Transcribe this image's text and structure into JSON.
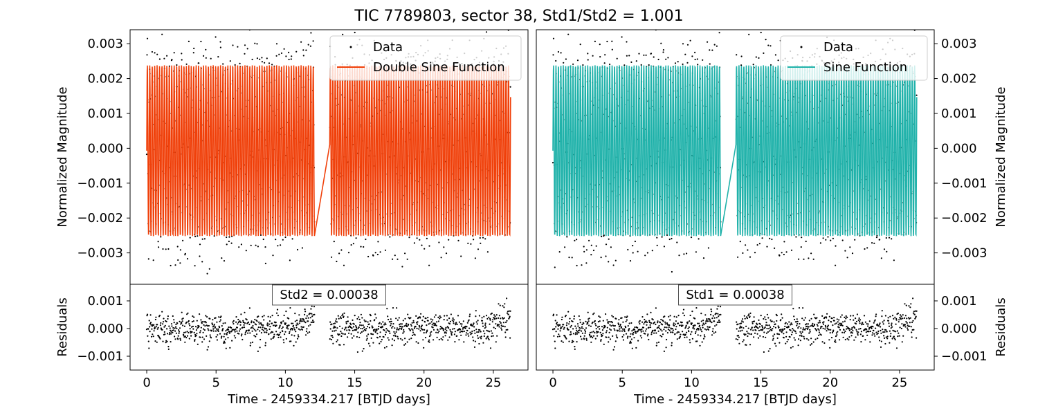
{
  "figure": {
    "title": "TIC 7789803, sector 38, Std1/Std2 = 1.001"
  },
  "chart_data": [
    {
      "type": "scatter",
      "panel": "top-left",
      "ylabel": "Normalized Magnitude",
      "xlim": [
        -1.2,
        27.5
      ],
      "ylim": [
        -0.0039,
        0.0034
      ],
      "yticks": [
        -0.003,
        -0.002,
        -0.001,
        0.0,
        0.001,
        0.002,
        0.003
      ],
      "ytick_labels": [
        "−0.003",
        "−0.002",
        "−0.001",
        "0.000",
        "0.001",
        "0.002",
        "0.003"
      ],
      "series": [
        {
          "name": "Data",
          "kind": "points",
          "color": "#000000"
        },
        {
          "name": "Double Sine Function",
          "kind": "line",
          "color": "#f0400a",
          "amplitude": 0.00245,
          "offset": -7e-05,
          "period_days": 0.176
        }
      ],
      "gap": [
        12.1,
        13.2
      ],
      "x_range": [
        0.0,
        26.25
      ],
      "legend": "upper right"
    },
    {
      "type": "scatter",
      "panel": "bottom-left",
      "ylabel": "Residuals",
      "xlabel": "Time - 2459334.217 [BTJD days]",
      "xlim": [
        -1.2,
        27.5
      ],
      "ylim": [
        -0.0015,
        0.0016
      ],
      "yticks": [
        -0.001,
        0.0,
        0.001
      ],
      "ytick_labels": [
        "−0.001",
        "0.000",
        "0.001"
      ],
      "xticks": [
        0,
        5,
        10,
        15,
        20,
        25
      ],
      "xtick_labels": [
        "0",
        "5",
        "10",
        "15",
        "20",
        "25"
      ],
      "annotation": "Std2 = 0.00038",
      "std": 0.00038
    },
    {
      "type": "scatter",
      "panel": "top-right",
      "ylabel": "Normalized Magnitude",
      "xlim": [
        -1.2,
        27.5
      ],
      "ylim": [
        -0.0039,
        0.0034
      ],
      "yticks": [
        -0.003,
        -0.002,
        -0.001,
        0.0,
        0.001,
        0.002,
        0.003
      ],
      "ytick_labels": [
        "−0.003",
        "−0.002",
        "−0.001",
        "0.000",
        "0.001",
        "0.002",
        "0.003"
      ],
      "series": [
        {
          "name": "Data",
          "kind": "points",
          "color": "#000000"
        },
        {
          "name": "Sine Function",
          "kind": "line",
          "color": "#20b2aa",
          "amplitude": 0.00245,
          "offset": -7e-05,
          "period_days": 0.176
        }
      ],
      "gap": [
        12.1,
        13.2
      ],
      "x_range": [
        0.0,
        26.25
      ],
      "legend": "upper right"
    },
    {
      "type": "scatter",
      "panel": "bottom-right",
      "ylabel": "Residuals",
      "xlabel": "Time - 2459334.217 [BTJD days]",
      "xlim": [
        -1.2,
        27.5
      ],
      "ylim": [
        -0.0015,
        0.0016
      ],
      "yticks": [
        -0.001,
        0.0,
        0.001
      ],
      "ytick_labels": [
        "−0.001",
        "0.000",
        "0.001"
      ],
      "xticks": [
        0,
        5,
        10,
        15,
        20,
        25
      ],
      "xtick_labels": [
        "0",
        "5",
        "10",
        "15",
        "20",
        "25"
      ],
      "annotation": "Std1 = 0.00038",
      "std": 0.00038
    }
  ]
}
